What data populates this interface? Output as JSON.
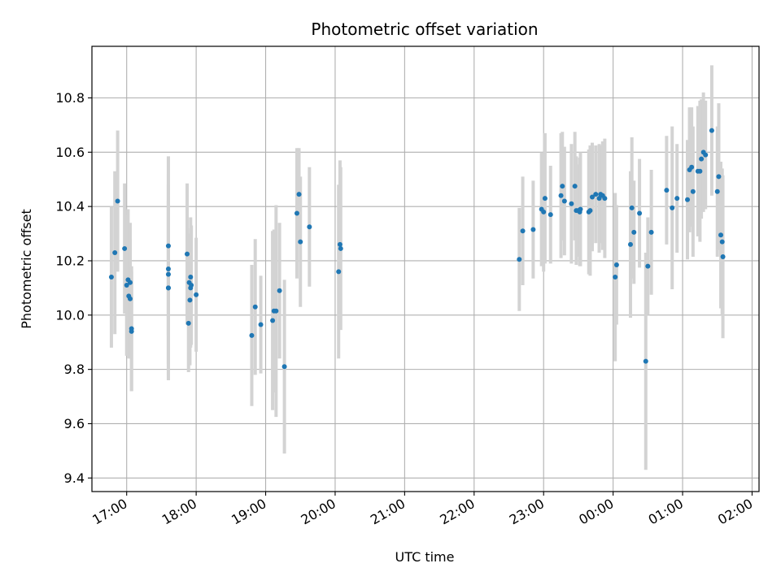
{
  "chart_data": {
    "type": "scatter",
    "title": "Photometric offset variation",
    "xlabel": "UTC time",
    "ylabel": "Photometric offset",
    "x_unit": "hours UTC (values >= 24 are on the following day)",
    "xlim": [
      16.5,
      26.1
    ],
    "ylim": [
      9.35,
      10.99
    ],
    "x_ticks": [
      17,
      18,
      19,
      20,
      21,
      22,
      23,
      24,
      25,
      26
    ],
    "x_tick_labels": [
      "17:00",
      "18:00",
      "19:00",
      "20:00",
      "21:00",
      "22:00",
      "23:00",
      "00:00",
      "01:00",
      "02:00"
    ],
    "y_ticks": [
      9.4,
      9.6,
      9.8,
      10.0,
      10.2,
      10.4,
      10.6,
      10.8
    ],
    "y_tick_labels": [
      "9.4",
      "9.6",
      "9.8",
      "10.0",
      "10.2",
      "10.4",
      "10.6",
      "10.8"
    ],
    "grid": true,
    "colors": {
      "point": "#1f77b4",
      "errorbar": "#d3d3d3",
      "grid": "#b0b0b0"
    },
    "series": [
      {
        "values_x": [
          16.78,
          16.83,
          16.87,
          16.97,
          17.0,
          17.02,
          17.03,
          17.05,
          17.05,
          17.07,
          17.07,
          17.6,
          17.6,
          17.6,
          17.6,
          17.6,
          17.87,
          17.89,
          17.9,
          17.91,
          17.92,
          17.92,
          17.93,
          18.0,
          18.8,
          18.85,
          18.93,
          19.1,
          19.12,
          19.15,
          19.2,
          19.27,
          19.45,
          19.48,
          19.5,
          19.63,
          20.05,
          20.07,
          20.08,
          22.65,
          22.7,
          22.85,
          22.97,
          23.0,
          23.02,
          23.1,
          23.25,
          23.27,
          23.3,
          23.4,
          23.45,
          23.47,
          23.5,
          23.52,
          23.53,
          23.65,
          23.67,
          23.7,
          23.75,
          23.8,
          23.82,
          23.85,
          23.88,
          24.03,
          24.05,
          24.25,
          24.27,
          24.3,
          24.38,
          24.47,
          24.5,
          24.55,
          24.77,
          24.85,
          24.92,
          25.07,
          25.1,
          25.13,
          25.15,
          25.22,
          25.25,
          25.27,
          25.3,
          25.33,
          25.42,
          25.5,
          25.52,
          25.55,
          25.57,
          25.58
        ],
        "values_y": [
          10.14,
          10.23,
          10.42,
          10.245,
          10.11,
          10.13,
          10.07,
          10.06,
          10.12,
          9.95,
          9.94,
          10.255,
          10.17,
          10.15,
          10.1,
          10.1,
          10.225,
          9.97,
          10.12,
          10.055,
          10.14,
          10.1,
          10.11,
          10.075,
          9.925,
          10.03,
          9.965,
          9.98,
          10.015,
          10.015,
          10.09,
          9.81,
          10.375,
          10.445,
          10.27,
          10.325,
          10.16,
          10.26,
          10.245,
          10.205,
          10.31,
          10.315,
          10.39,
          10.38,
          10.43,
          10.37,
          10.44,
          10.475,
          10.42,
          10.41,
          10.475,
          10.385,
          10.385,
          10.38,
          10.39,
          10.38,
          10.385,
          10.435,
          10.445,
          10.43,
          10.445,
          10.44,
          10.43,
          10.14,
          10.185,
          10.26,
          10.395,
          10.305,
          10.375,
          9.83,
          10.18,
          10.305,
          10.46,
          10.395,
          10.43,
          10.425,
          10.535,
          10.545,
          10.455,
          10.53,
          10.53,
          10.575,
          10.6,
          10.59,
          10.68,
          10.455,
          10.51,
          10.295,
          10.27,
          10.215
        ],
        "errors": [
          0.26,
          0.3,
          0.26,
          0.24,
          0.26,
          0.26,
          0.23,
          0.22,
          0.22,
          0.23,
          0.22,
          0.33,
          0.35,
          0.33,
          0.34,
          0.32,
          0.26,
          0.18,
          0.18,
          0.24,
          0.22,
          0.22,
          0.22,
          0.21,
          0.26,
          0.25,
          0.18,
          0.33,
          0.3,
          0.39,
          0.25,
          0.32,
          0.24,
          0.17,
          0.24,
          0.22,
          0.32,
          0.31,
          0.3,
          0.19,
          0.2,
          0.18,
          0.21,
          0.22,
          0.24,
          0.18,
          0.23,
          0.2,
          0.2,
          0.22,
          0.2,
          0.2,
          0.17,
          0.2,
          0.21,
          0.23,
          0.24,
          0.2,
          0.18,
          0.2,
          0.18,
          0.2,
          0.22,
          0.31,
          0.22,
          0.27,
          0.26,
          0.19,
          0.2,
          0.4,
          0.18,
          0.23,
          0.2,
          0.3,
          0.2,
          0.22,
          0.23,
          0.22,
          0.24,
          0.24,
          0.26,
          0.22,
          0.22,
          0.2,
          0.24,
          0.24,
          0.27,
          0.27,
          0.27,
          0.3
        ]
      }
    ]
  }
}
